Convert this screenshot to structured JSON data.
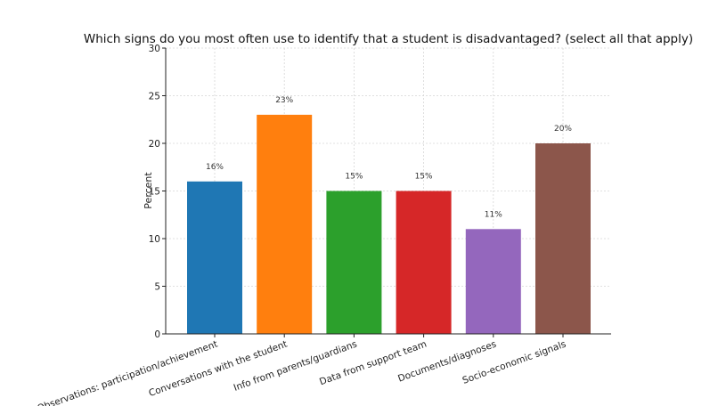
{
  "chart_data": {
    "type": "bar",
    "title": "Which signs do you most often use to identify that a student is disadvantaged? (select all that apply)",
    "xlabel": "",
    "ylabel": "Percent",
    "ylim": [
      0,
      30
    ],
    "yticks": [
      0,
      5,
      10,
      15,
      20,
      25,
      30
    ],
    "grid": true,
    "categories": [
      "Observations: participation/achievement",
      "Conversations with the student",
      "Info from parents/guardians",
      "Data from support team",
      "Documents/diagnoses",
      "Socio-economic signals"
    ],
    "values": [
      16,
      23,
      15,
      15,
      11,
      20
    ],
    "data_labels": [
      "16%",
      "23%",
      "15%",
      "15%",
      "11%",
      "20%"
    ],
    "colors": [
      "#1f77b4",
      "#ff7f0e",
      "#2ca02c",
      "#d62728",
      "#9467bd",
      "#8c564b"
    ]
  }
}
